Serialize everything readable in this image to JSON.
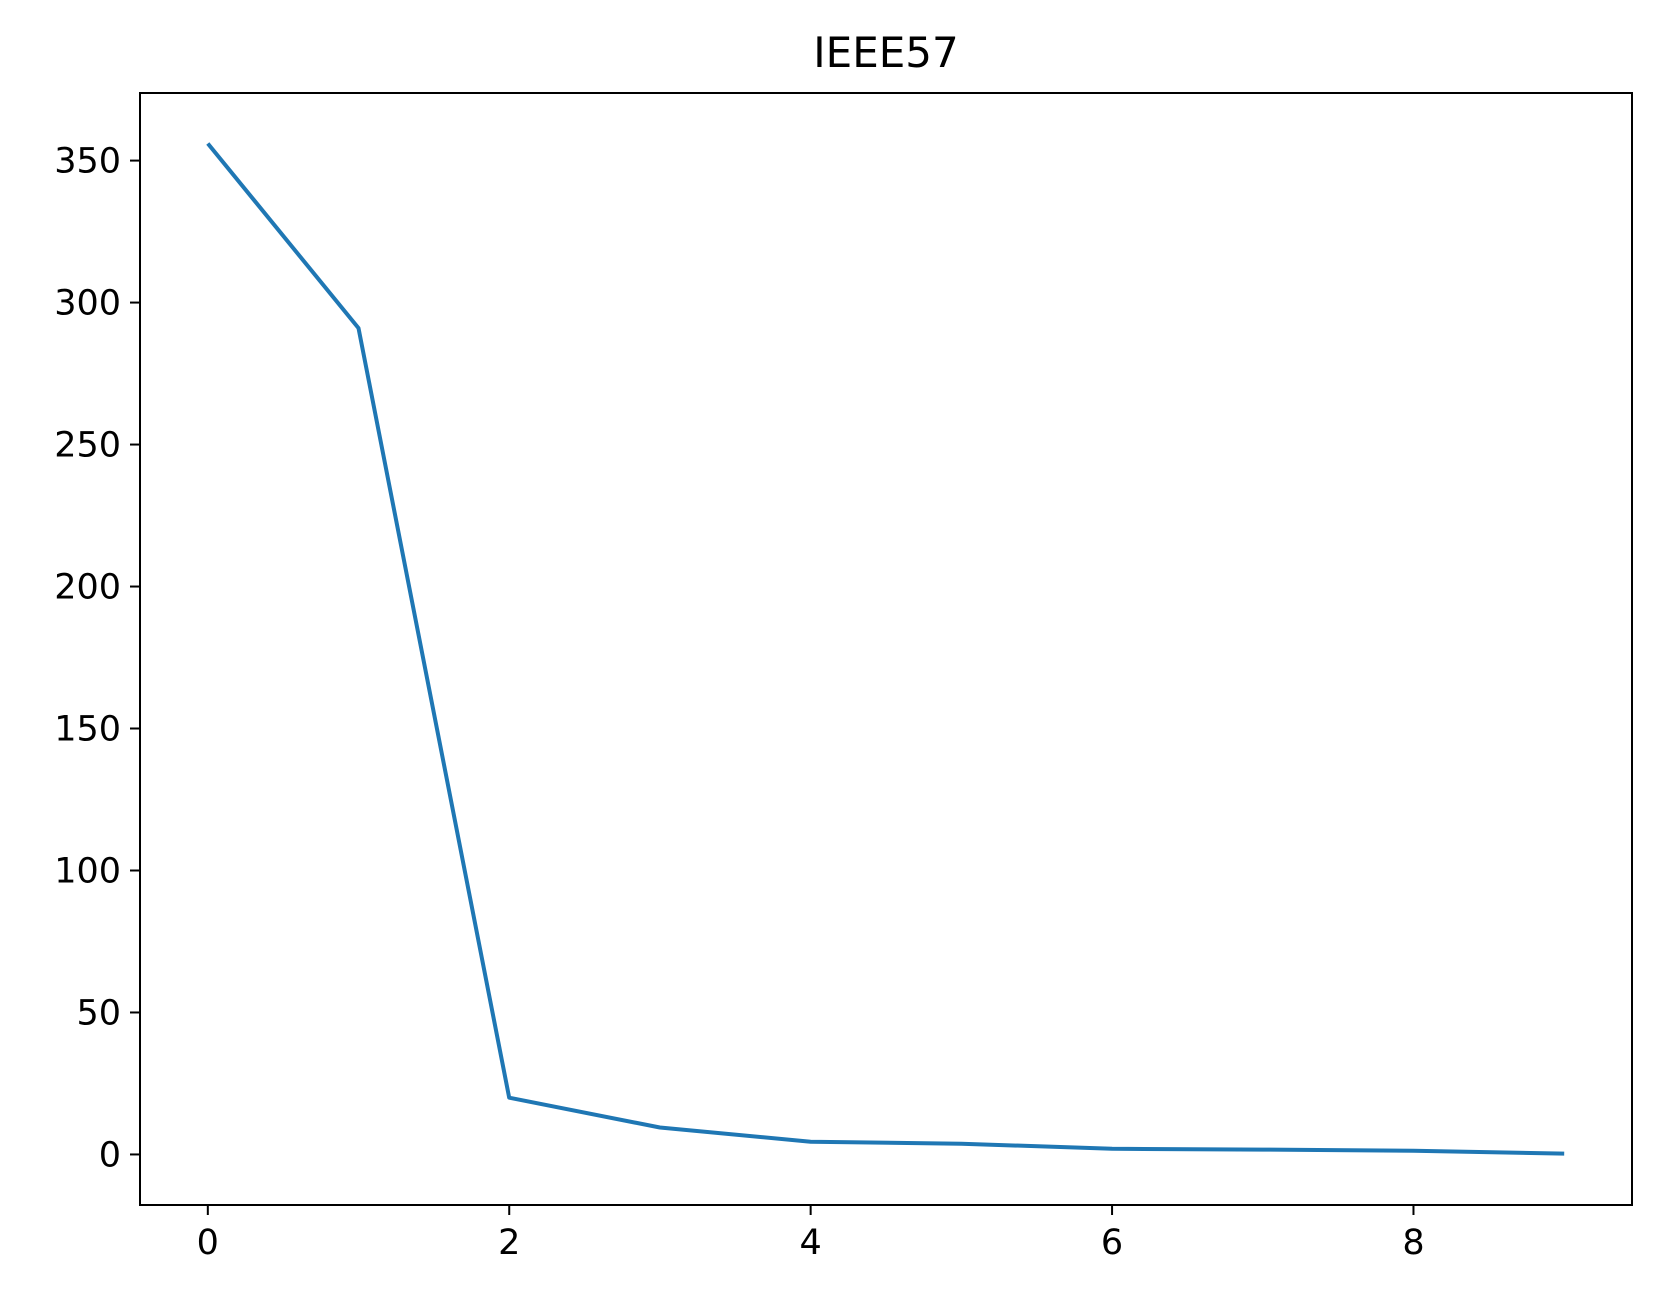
{
  "chart_data": {
    "type": "line",
    "title": "IEEE57",
    "xlabel": "",
    "ylabel": "",
    "xlim": [
      -0.45,
      9.45
    ],
    "ylim": [
      -17.8,
      373.8
    ],
    "grid": false,
    "legend": "none",
    "x_ticks": [
      0,
      2,
      4,
      6,
      8
    ],
    "y_ticks": [
      0,
      50,
      100,
      150,
      200,
      250,
      300,
      350
    ],
    "series": [
      {
        "color": "#1f77b4",
        "x": [
          0,
          1,
          2,
          3,
          4,
          5,
          6,
          7,
          8,
          9
        ],
        "y": [
          356,
          291,
          20,
          9.5,
          4.5,
          3.8,
          2,
          1.7,
          1.3,
          0.3
        ]
      }
    ]
  }
}
